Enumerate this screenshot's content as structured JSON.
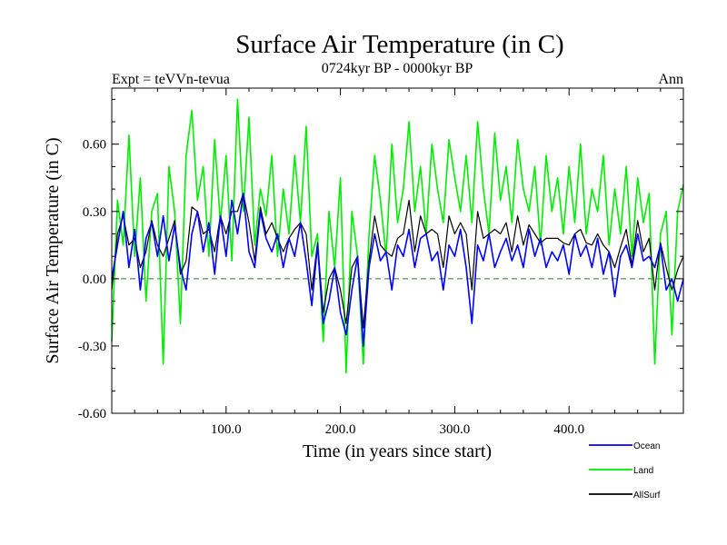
{
  "chart_data": {
    "type": "line",
    "title": "Surface Air Temperature (in C)",
    "subtitle": "0724kyr BP - 0000kyr BP",
    "left_annotation": "Expt = teVVn-tevua",
    "right_annotation": "Ann",
    "xlabel": "Time (in years since start)",
    "ylabel": "Surface Air Temperature (in C)",
    "xlim": [
      0,
      500
    ],
    "ylim": [
      -0.6,
      0.85
    ],
    "x_ticks": [
      {
        "value": 100,
        "label": "100.0"
      },
      {
        "value": 200,
        "label": "200.0"
      },
      {
        "value": 300,
        "label": "300.0"
      },
      {
        "value": 400,
        "label": "400.0"
      }
    ],
    "y_ticks": [
      {
        "value": 0.6,
        "label": "0.60"
      },
      {
        "value": 0.3,
        "label": "0.30"
      },
      {
        "value": 0.0,
        "label": "0.00"
      },
      {
        "value": -0.3,
        "label": "-0.30"
      },
      {
        "value": -0.6,
        "label": "-0.60"
      }
    ],
    "zero_line": "dashed",
    "legend_position": "bottom-right",
    "series": [
      {
        "name": "Ocean",
        "color": "#0000ff",
        "x": [
          0,
          5,
          10,
          15,
          20,
          25,
          30,
          35,
          40,
          45,
          50,
          55,
          60,
          65,
          70,
          75,
          80,
          85,
          90,
          95,
          100,
          105,
          110,
          115,
          120,
          125,
          130,
          135,
          140,
          145,
          150,
          155,
          160,
          165,
          170,
          175,
          180,
          185,
          190,
          195,
          200,
          205,
          210,
          215,
          220,
          225,
          230,
          235,
          240,
          245,
          250,
          255,
          260,
          265,
          270,
          275,
          280,
          285,
          290,
          295,
          300,
          305,
          310,
          315,
          320,
          325,
          330,
          335,
          340,
          345,
          350,
          355,
          360,
          365,
          370,
          375,
          380,
          385,
          390,
          395,
          400,
          405,
          410,
          415,
          420,
          425,
          430,
          435,
          440,
          445,
          450,
          455,
          460,
          465,
          470,
          475,
          480,
          485,
          490,
          495,
          500
        ],
        "values": [
          0.0,
          0.15,
          0.3,
          0.05,
          0.22,
          -0.05,
          0.18,
          0.25,
          0.1,
          0.28,
          0.08,
          0.24,
          0.05,
          -0.05,
          0.2,
          0.3,
          0.12,
          0.25,
          0.02,
          0.28,
          0.1,
          0.35,
          0.2,
          0.38,
          0.12,
          0.05,
          0.3,
          0.18,
          0.12,
          0.2,
          0.05,
          0.18,
          0.1,
          0.25,
          0.08,
          -0.12,
          0.15,
          -0.2,
          -0.1,
          0.05,
          -0.15,
          -0.25,
          -0.05,
          0.1,
          -0.3,
          0.05,
          0.2,
          0.08,
          0.12,
          -0.05,
          0.15,
          0.1,
          0.22,
          0.05,
          0.18,
          0.2,
          0.08,
          0.12,
          -0.05,
          0.15,
          0.1,
          0.22,
          0.05,
          -0.2,
          0.15,
          0.08,
          0.2,
          0.05,
          0.12,
          0.18,
          0.08,
          0.15,
          0.05,
          0.22,
          0.1,
          0.18,
          0.05,
          0.12,
          0.08,
          0.15,
          0.02,
          0.2,
          0.1,
          0.15,
          0.05,
          0.18,
          0.02,
          0.12,
          -0.08,
          0.1,
          0.15,
          0.05,
          0.2,
          0.08,
          0.1,
          0.05,
          0.15,
          -0.05,
          0.0,
          -0.1,
          0.0
        ]
      },
      {
        "name": "Land",
        "color": "#00ee00",
        "x": [
          0,
          5,
          10,
          15,
          20,
          25,
          30,
          35,
          40,
          45,
          50,
          55,
          60,
          65,
          70,
          75,
          80,
          85,
          90,
          95,
          100,
          105,
          110,
          115,
          120,
          125,
          130,
          135,
          140,
          145,
          150,
          155,
          160,
          165,
          170,
          175,
          180,
          185,
          190,
          195,
          200,
          205,
          210,
          215,
          220,
          225,
          230,
          235,
          240,
          245,
          250,
          255,
          260,
          265,
          270,
          275,
          280,
          285,
          290,
          295,
          300,
          305,
          310,
          315,
          320,
          325,
          330,
          335,
          340,
          345,
          350,
          355,
          360,
          365,
          370,
          375,
          380,
          385,
          390,
          395,
          400,
          405,
          410,
          415,
          420,
          425,
          430,
          435,
          440,
          445,
          450,
          455,
          460,
          465,
          470,
          475,
          480,
          485,
          490,
          495,
          500
        ],
        "values": [
          -0.28,
          0.35,
          0.15,
          0.64,
          0.1,
          0.45,
          -0.1,
          0.3,
          0.38,
          -0.38,
          0.5,
          0.3,
          -0.2,
          0.55,
          0.75,
          0.35,
          0.5,
          0.1,
          0.62,
          0.25,
          0.55,
          0.08,
          0.8,
          0.3,
          0.72,
          0.15,
          0.4,
          0.28,
          0.55,
          0.1,
          0.4,
          0.2,
          0.55,
          0.25,
          0.68,
          0.1,
          0.2,
          -0.28,
          0.3,
          0.05,
          0.45,
          -0.42,
          0.3,
          0.1,
          -0.38,
          0.2,
          0.55,
          0.35,
          0.1,
          0.6,
          0.25,
          0.4,
          0.7,
          0.3,
          0.5,
          0.2,
          0.6,
          0.4,
          0.25,
          0.62,
          0.45,
          0.3,
          0.55,
          0.25,
          0.7,
          0.4,
          0.2,
          0.65,
          0.35,
          0.5,
          0.25,
          0.62,
          0.4,
          0.3,
          0.5,
          0.15,
          0.55,
          0.3,
          0.45,
          0.2,
          0.5,
          0.25,
          0.6,
          0.2,
          0.4,
          0.3,
          0.55,
          0.15,
          0.4,
          0.2,
          0.5,
          0.1,
          0.45,
          0.25,
          0.38,
          -0.38,
          0.2,
          0.3,
          -0.25,
          0.3,
          0.42
        ]
      },
      {
        "name": "AllSurf",
        "color": "#000000",
        "x": [
          0,
          5,
          10,
          15,
          20,
          25,
          30,
          35,
          40,
          45,
          50,
          55,
          60,
          65,
          70,
          75,
          80,
          85,
          90,
          95,
          100,
          105,
          110,
          115,
          120,
          125,
          130,
          135,
          140,
          145,
          150,
          155,
          160,
          165,
          170,
          175,
          180,
          185,
          190,
          195,
          200,
          205,
          210,
          215,
          220,
          225,
          230,
          235,
          240,
          245,
          250,
          255,
          260,
          265,
          270,
          275,
          280,
          285,
          290,
          295,
          300,
          305,
          310,
          315,
          320,
          325,
          330,
          335,
          340,
          345,
          350,
          355,
          360,
          365,
          370,
          375,
          380,
          385,
          390,
          395,
          400,
          405,
          410,
          415,
          420,
          425,
          430,
          435,
          440,
          445,
          450,
          455,
          460,
          465,
          470,
          475,
          480,
          485,
          490,
          495,
          500
        ],
        "values": [
          -0.05,
          0.2,
          0.28,
          0.15,
          0.18,
          0.05,
          0.12,
          0.26,
          0.15,
          0.1,
          0.18,
          0.26,
          0.02,
          0.08,
          0.32,
          0.3,
          0.2,
          0.22,
          0.12,
          0.28,
          0.2,
          0.3,
          0.3,
          0.38,
          0.25,
          0.08,
          0.32,
          0.2,
          0.25,
          0.18,
          0.12,
          0.18,
          0.22,
          0.25,
          0.2,
          -0.05,
          0.16,
          -0.15,
          0.0,
          0.05,
          -0.05,
          -0.2,
          0.05,
          0.1,
          -0.22,
          0.08,
          0.28,
          0.15,
          0.12,
          0.1,
          0.18,
          0.2,
          0.35,
          0.12,
          0.28,
          0.2,
          0.22,
          0.2,
          0.05,
          0.28,
          0.2,
          0.25,
          0.2,
          -0.05,
          0.3,
          0.18,
          0.2,
          0.22,
          0.2,
          0.25,
          0.12,
          0.28,
          0.15,
          0.24,
          0.2,
          0.16,
          0.18,
          0.18,
          0.18,
          0.16,
          0.15,
          0.2,
          0.22,
          0.16,
          0.15,
          0.2,
          0.15,
          0.12,
          0.05,
          0.14,
          0.22,
          0.06,
          0.26,
          0.12,
          0.18,
          -0.05,
          0.16,
          0.05,
          -0.05,
          0.04,
          0.1
        ]
      }
    ]
  }
}
